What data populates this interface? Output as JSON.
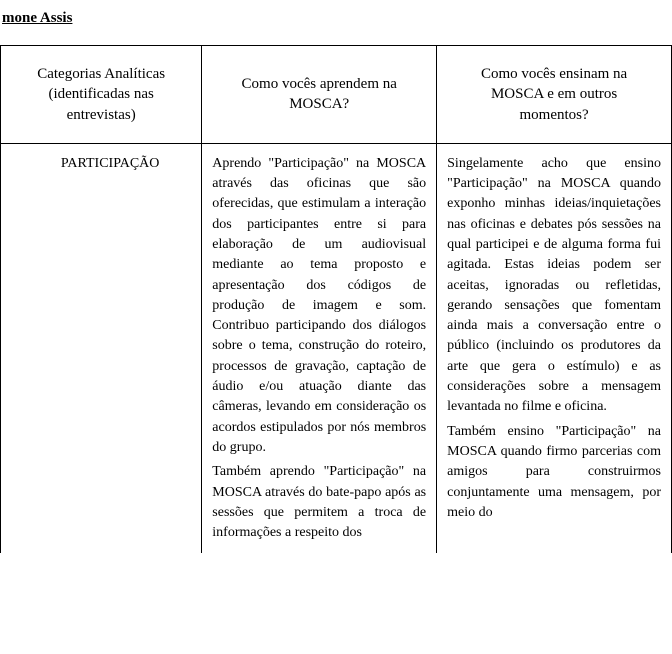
{
  "author_name": "mone Assis",
  "headers": {
    "col1_line1": "Categorias Analíticas",
    "col1_line2": "(identificadas nas",
    "col1_line3": "entrevistas)",
    "col2_line1": "Como vocês aprendem na",
    "col2_line2": "MOSCA?",
    "col3_line1": "Como vocês ensinam na",
    "col3_line2": "MOSCA e em outros",
    "col3_line3": "momentos?"
  },
  "row": {
    "category": "PARTICIPAÇÃO",
    "col2_p1": "Aprendo \"Participação\" na MOSCA através das oficinas que são oferecidas, que estimulam a interação dos participantes entre si para elaboração de um audiovisual mediante ao tema proposto e apresentação dos códigos de produção de imagem e som. Contribuo participando dos diálogos sobre o tema, construção do roteiro, processos de gravação, captação de áudio e/ou atuação diante das câmeras, levando em consideração os acordos estipulados por nós membros do grupo.",
    "col2_p2": "Também aprendo \"Participação\" na MOSCA através do bate-papo após as sessões que permitem a troca de informações a respeito dos",
    "col3_p1": "Singelamente acho que ensino \"Participação\" na MOSCA quando exponho minhas ideias/inquietações nas oficinas e debates pós sessões na qual participei e de alguma forma fui agitada. Estas ideias podem ser aceitas, ignoradas ou refletidas, gerando sensações que fomentam ainda mais a conversação entre o público (incluindo os produtores da arte que gera o estímulo) e as considerações sobre a mensagem levantada no filme e oficina.",
    "col3_p2": "Também ensino \"Participação\" na MOSCA quando firmo parcerias com amigos para construirmos conjuntamente uma mensagem, por meio do"
  }
}
